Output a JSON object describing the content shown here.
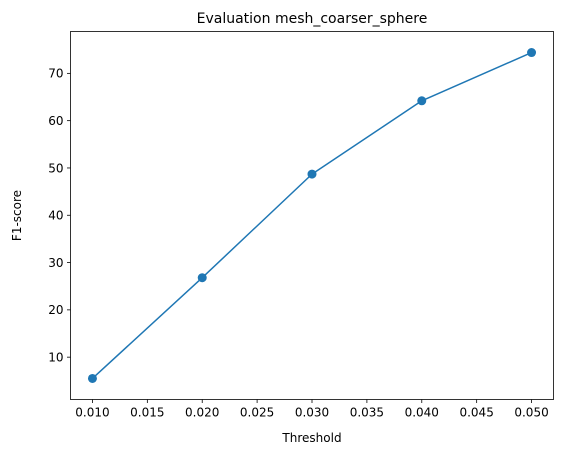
{
  "chart_data": {
    "type": "line",
    "title": "Evaluation mesh_coarser_sphere",
    "xlabel": "Threshold",
    "ylabel": "F1-score",
    "x": [
      0.01,
      0.02,
      0.03,
      0.04,
      0.05
    ],
    "series": [
      {
        "values": [
          5.5,
          26.8,
          48.7,
          64.2,
          74.4
        ]
      }
    ],
    "xlim": [
      0.008,
      0.052
    ],
    "ylim": [
      1.05,
      78.85
    ],
    "xticks": [
      0.01,
      0.015,
      0.02,
      0.025,
      0.03,
      0.035,
      0.04,
      0.045,
      0.05
    ],
    "xtick_labels": [
      "0.010",
      "0.015",
      "0.020",
      "0.025",
      "0.030",
      "0.035",
      "0.040",
      "0.045",
      "0.050"
    ],
    "yticks": [
      10,
      20,
      30,
      40,
      50,
      60,
      70
    ],
    "ytick_labels": [
      "10",
      "20",
      "30",
      "40",
      "50",
      "60",
      "70"
    ],
    "grid": false,
    "legend": "none",
    "colors": {
      "line": "#1f77b4",
      "marker": "#1f77b4",
      "axes": "#000000"
    },
    "marker": "circle"
  }
}
